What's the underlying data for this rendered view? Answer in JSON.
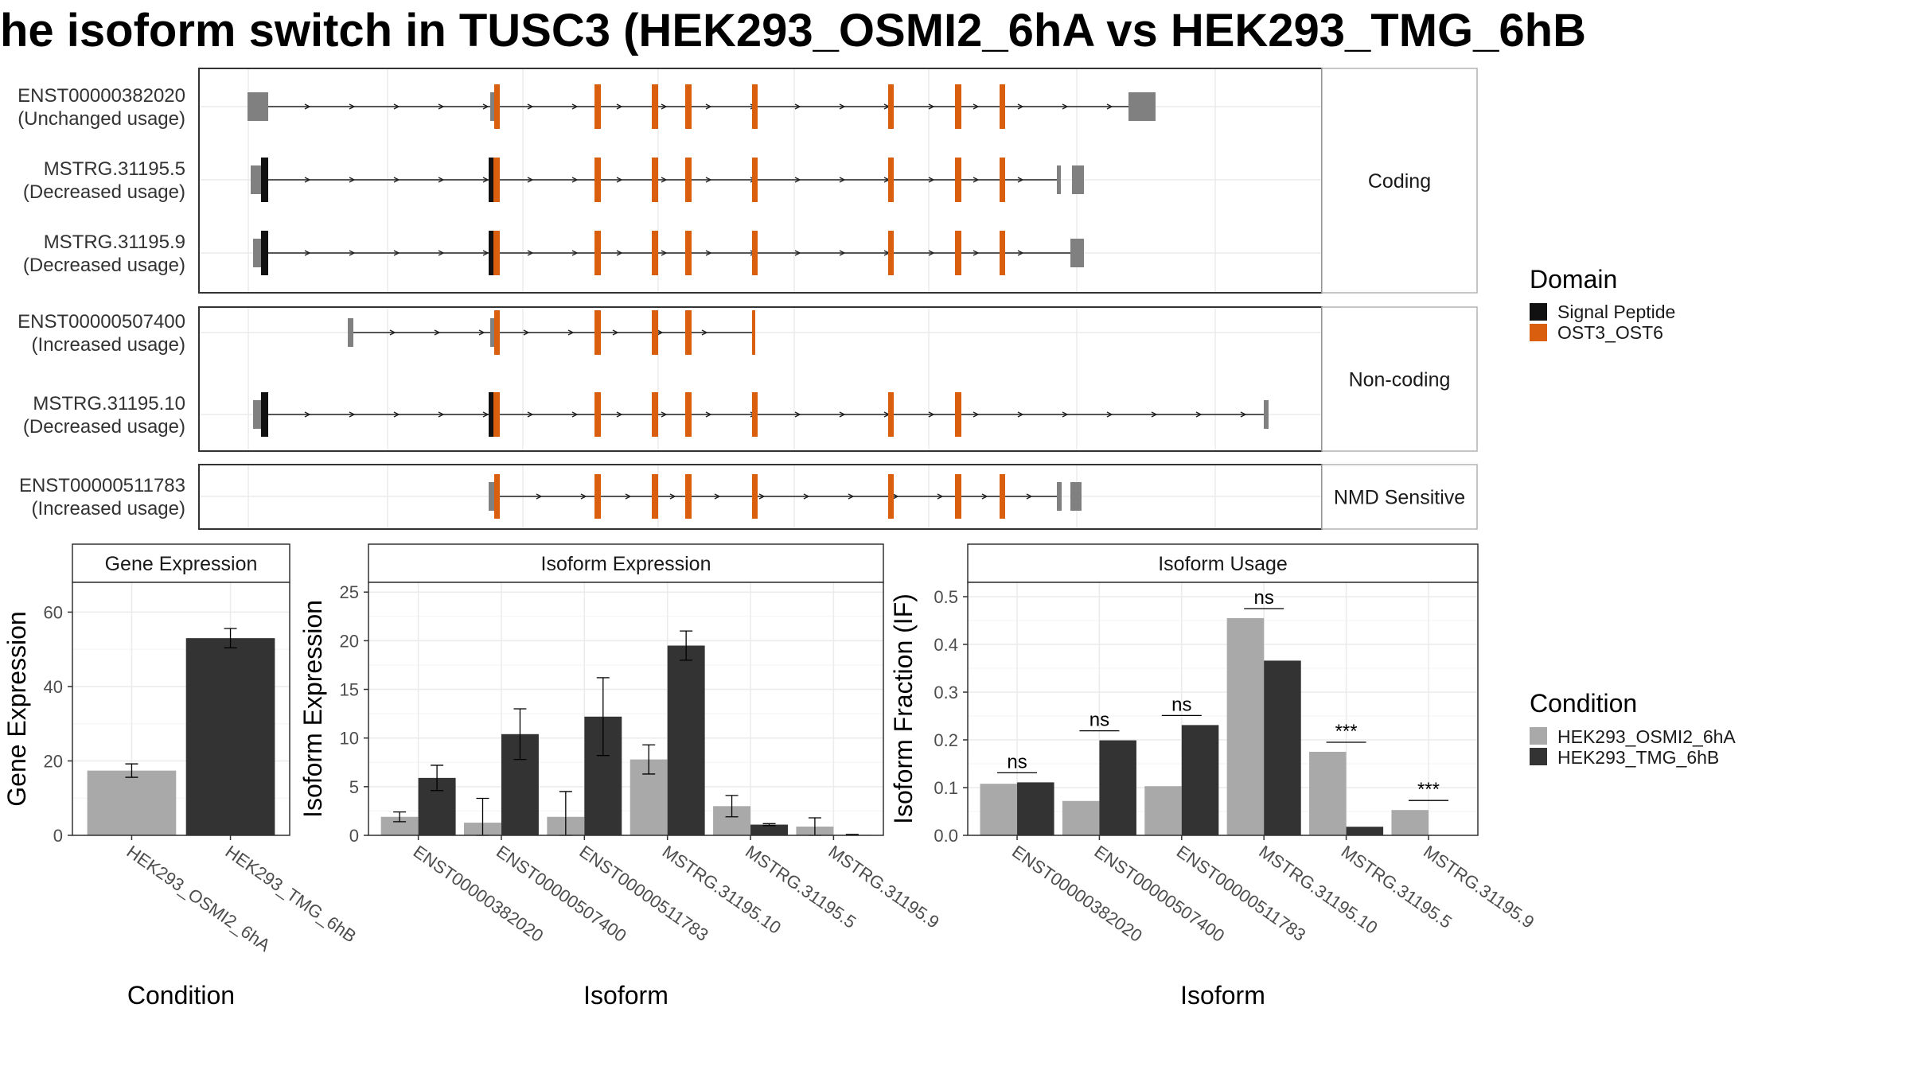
{
  "title": "he isoform switch in TUSC3 (HEK293_OSMI2_6hA vs HEK293_TMG_6hB",
  "colors": {
    "signal_peptide": "#111111",
    "ost": "#D95F0E",
    "utr": "#808080",
    "cond_a": "#A9A9A9",
    "cond_b": "#333333"
  },
  "legend": {
    "domain_title": "Domain",
    "domain_items": [
      "Signal Peptide",
      "OST3_OST6"
    ],
    "condition_title": "Condition",
    "condition_items": [
      "HEK293_OSMI2_6hA",
      "HEK293_TMG_6hB"
    ]
  },
  "panels": {
    "gene_expression": {
      "strip": "Gene Expression",
      "xlabel": "Condition",
      "ylabel": "Gene Expression"
    },
    "isoform_expression": {
      "strip": "Isoform Expression",
      "xlabel": "Isoform",
      "ylabel": "Isoform Expression"
    },
    "isoform_usage": {
      "strip": "Isoform Usage",
      "xlabel": "Isoform",
      "ylabel": "Isoform Fraction (IF)"
    }
  },
  "chart_data": [
    {
      "type": "gene-structure",
      "groups": [
        {
          "label": "Coding",
          "transcripts": [
            {
              "id": "ENST00000382020",
              "usage": "(Unchanged usage)"
            },
            {
              "id": "MSTRG.31195.5",
              "usage": "(Decreased usage)"
            },
            {
              "id": "MSTRG.31195.9",
              "usage": "(Decreased usage)"
            }
          ]
        },
        {
          "label": "Non-coding",
          "transcripts": [
            {
              "id": "ENST00000507400",
              "usage": "(Increased usage)"
            },
            {
              "id": "MSTRG.31195.10",
              "usage": "(Decreased usage)"
            }
          ]
        },
        {
          "label": "NMD Sensitive",
          "transcripts": [
            {
              "id": "ENST00000511783",
              "usage": "(Increased usage)"
            }
          ]
        }
      ]
    },
    {
      "type": "bar",
      "title": "Gene Expression",
      "categories": [
        "HEK293_OSMI2_6hA",
        "HEK293_TMG_6hB"
      ],
      "values": [
        17.4,
        53.0
      ],
      "errors": [
        1.8,
        2.6
      ],
      "ylim": [
        0,
        68
      ],
      "yticks": [
        0,
        20,
        40,
        60
      ]
    },
    {
      "type": "bar",
      "title": "Isoform Expression",
      "categories": [
        "ENST00000382020",
        "ENST00000507400",
        "ENST00000511783",
        "MSTRG.31195.10",
        "MSTRG.31195.5",
        "MSTRG.31195.9"
      ],
      "series": [
        {
          "name": "HEK293_OSMI2_6hA",
          "values": [
            1.9,
            1.3,
            1.9,
            7.8,
            3.0,
            0.9
          ],
          "errors": [
            0.5,
            2.5,
            2.6,
            1.5,
            1.1,
            0.9
          ]
        },
        {
          "name": "HEK293_TMG_6hB",
          "values": [
            5.9,
            10.4,
            12.2,
            19.5,
            1.1,
            0.05
          ],
          "errors": [
            1.3,
            2.6,
            4.0,
            1.5,
            0.1,
            0.05
          ]
        }
      ],
      "ylim": [
        0,
        26
      ],
      "yticks": [
        0,
        5,
        10,
        15,
        20,
        25
      ]
    },
    {
      "type": "bar",
      "title": "Isoform Usage",
      "categories": [
        "ENST00000382020",
        "ENST00000507400",
        "ENST00000511783",
        "MSTRG.31195.10",
        "MSTRG.31195.5",
        "MSTRG.31195.9"
      ],
      "series": [
        {
          "name": "HEK293_OSMI2_6hA",
          "values": [
            0.108,
            0.072,
            0.103,
            0.455,
            0.175,
            0.053
          ]
        },
        {
          "name": "HEK293_TMG_6hB",
          "values": [
            0.111,
            0.199,
            0.231,
            0.366,
            0.018,
            0.0
          ]
        }
      ],
      "significance": [
        "ns",
        "ns",
        "ns",
        "ns",
        "***",
        "***"
      ],
      "ylim": [
        0,
        0.53
      ],
      "yticks": [
        "0.0",
        "0.1",
        "0.2",
        "0.3",
        "0.4",
        "0.5"
      ]
    }
  ]
}
